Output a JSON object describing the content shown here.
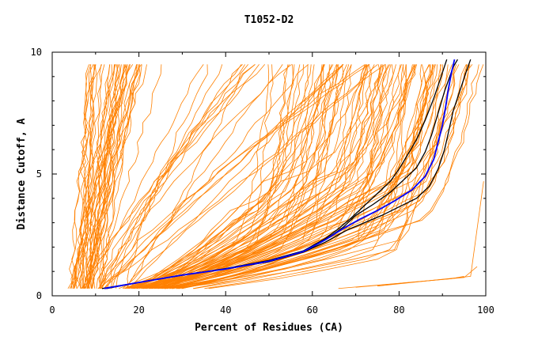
{
  "chart_data": {
    "type": "line",
    "title": "T1052-D2",
    "xlabel": "Percent of Residues (CA)",
    "ylabel": "Distance Cutoff, A",
    "xlim": [
      0,
      100
    ],
    "ylim": [
      0,
      10
    ],
    "x_ticks": [
      0,
      20,
      40,
      60,
      80,
      100
    ],
    "y_ticks": [
      0,
      5,
      10
    ],
    "grid": false,
    "legend": "none",
    "colors": {
      "background_models": "#ff8000",
      "highlight_dark": "#000000",
      "highlight_blue": "#0000ff"
    },
    "background_series_count": 150,
    "series": [
      {
        "color": "#000000",
        "x": [
          11.5,
          20,
          30,
          40,
          50,
          58,
          63,
          67,
          70,
          74,
          78,
          81,
          84,
          86,
          87.5,
          88.5,
          89.5,
          90.5,
          91.5,
          92.5,
          93.5
        ],
        "y": [
          0.3,
          0.55,
          0.85,
          1.1,
          1.4,
          1.8,
          2.3,
          2.8,
          3.3,
          3.75,
          4.25,
          4.75,
          5.25,
          5.9,
          6.6,
          7.2,
          7.8,
          8.4,
          8.9,
          9.4,
          9.7
        ]
      },
      {
        "color": "#000000",
        "x": [
          12,
          20,
          30,
          40,
          50,
          58,
          63,
          66,
          69,
          72,
          75,
          78,
          80,
          82,
          84,
          86,
          88,
          89.5,
          91
        ],
        "y": [
          0.3,
          0.55,
          0.85,
          1.12,
          1.45,
          1.85,
          2.35,
          2.75,
          3.2,
          3.7,
          4.2,
          4.7,
          5.2,
          5.8,
          6.4,
          7.2,
          8.1,
          8.9,
          9.7
        ]
      },
      {
        "color": "#000000",
        "x": [
          12.5,
          20,
          30,
          40,
          50,
          58,
          63,
          68,
          72,
          76,
          80,
          84,
          87,
          89,
          90.5,
          91.5,
          92.5,
          94,
          95.5,
          96.5
        ],
        "y": [
          0.3,
          0.55,
          0.85,
          1.1,
          1.4,
          1.8,
          2.2,
          2.7,
          3.0,
          3.3,
          3.65,
          4.0,
          4.5,
          5.2,
          6.0,
          6.8,
          7.6,
          8.4,
          9.2,
          9.7
        ]
      },
      {
        "color": "#0000ff",
        "x": [
          12,
          20,
          30,
          40,
          50,
          58,
          63,
          67,
          71,
          75,
          79,
          83,
          86,
          88,
          89,
          90,
          90.7,
          91.3,
          92,
          92.8
        ],
        "y": [
          0.3,
          0.55,
          0.85,
          1.1,
          1.42,
          1.82,
          2.3,
          2.75,
          3.15,
          3.5,
          3.9,
          4.35,
          4.9,
          5.6,
          6.3,
          7.0,
          7.7,
          8.4,
          9.1,
          9.7
        ]
      }
    ]
  }
}
